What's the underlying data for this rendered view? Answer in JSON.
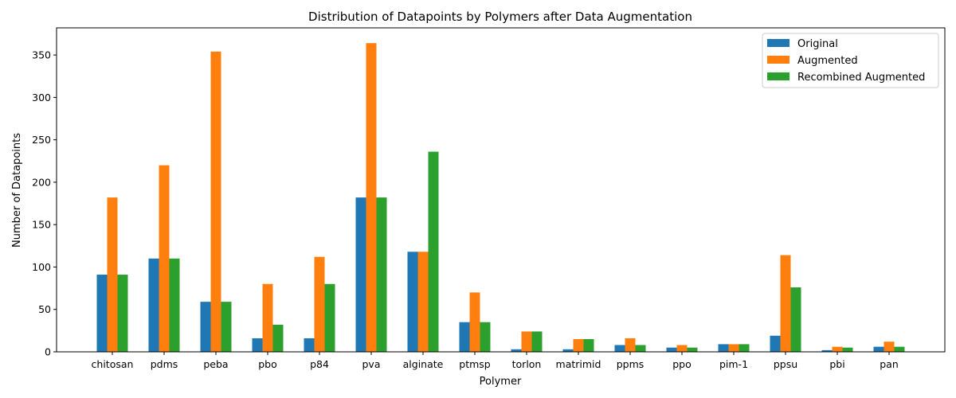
{
  "chart_data": {
    "type": "bar",
    "title": "Distribution of Datapoints by Polymers after Data Augmentation",
    "xlabel": "Polymer",
    "ylabel": "Number of Datapoints",
    "ylim": [
      0,
      382
    ],
    "yticks": [
      0,
      50,
      100,
      150,
      200,
      250,
      300,
      350
    ],
    "grid": false,
    "legend_position": "top-right",
    "categories": [
      "chitosan",
      "pdms",
      "peba",
      "pbo",
      "p84",
      "pva",
      "alginate",
      "ptmsp",
      "torlon",
      "matrimid",
      "ppms",
      "ppo",
      "pim-1",
      "ppsu",
      "pbi",
      "pan"
    ],
    "series": [
      {
        "name": "Original",
        "color": "#1f77b4",
        "values": [
          91,
          110,
          59,
          16,
          16,
          182,
          118,
          35,
          3,
          3,
          8,
          5,
          9,
          19,
          2,
          6
        ]
      },
      {
        "name": "Augmented",
        "color": "#ff7f0e",
        "values": [
          182,
          220,
          354,
          80,
          112,
          364,
          118,
          70,
          24,
          15,
          16,
          8,
          9,
          114,
          6,
          12
        ]
      },
      {
        "name": "Recombined Augmented",
        "color": "#2ca02c",
        "values": [
          91,
          110,
          59,
          32,
          80,
          182,
          236,
          35,
          24,
          15,
          8,
          5,
          9,
          76,
          5,
          6
        ]
      }
    ]
  }
}
